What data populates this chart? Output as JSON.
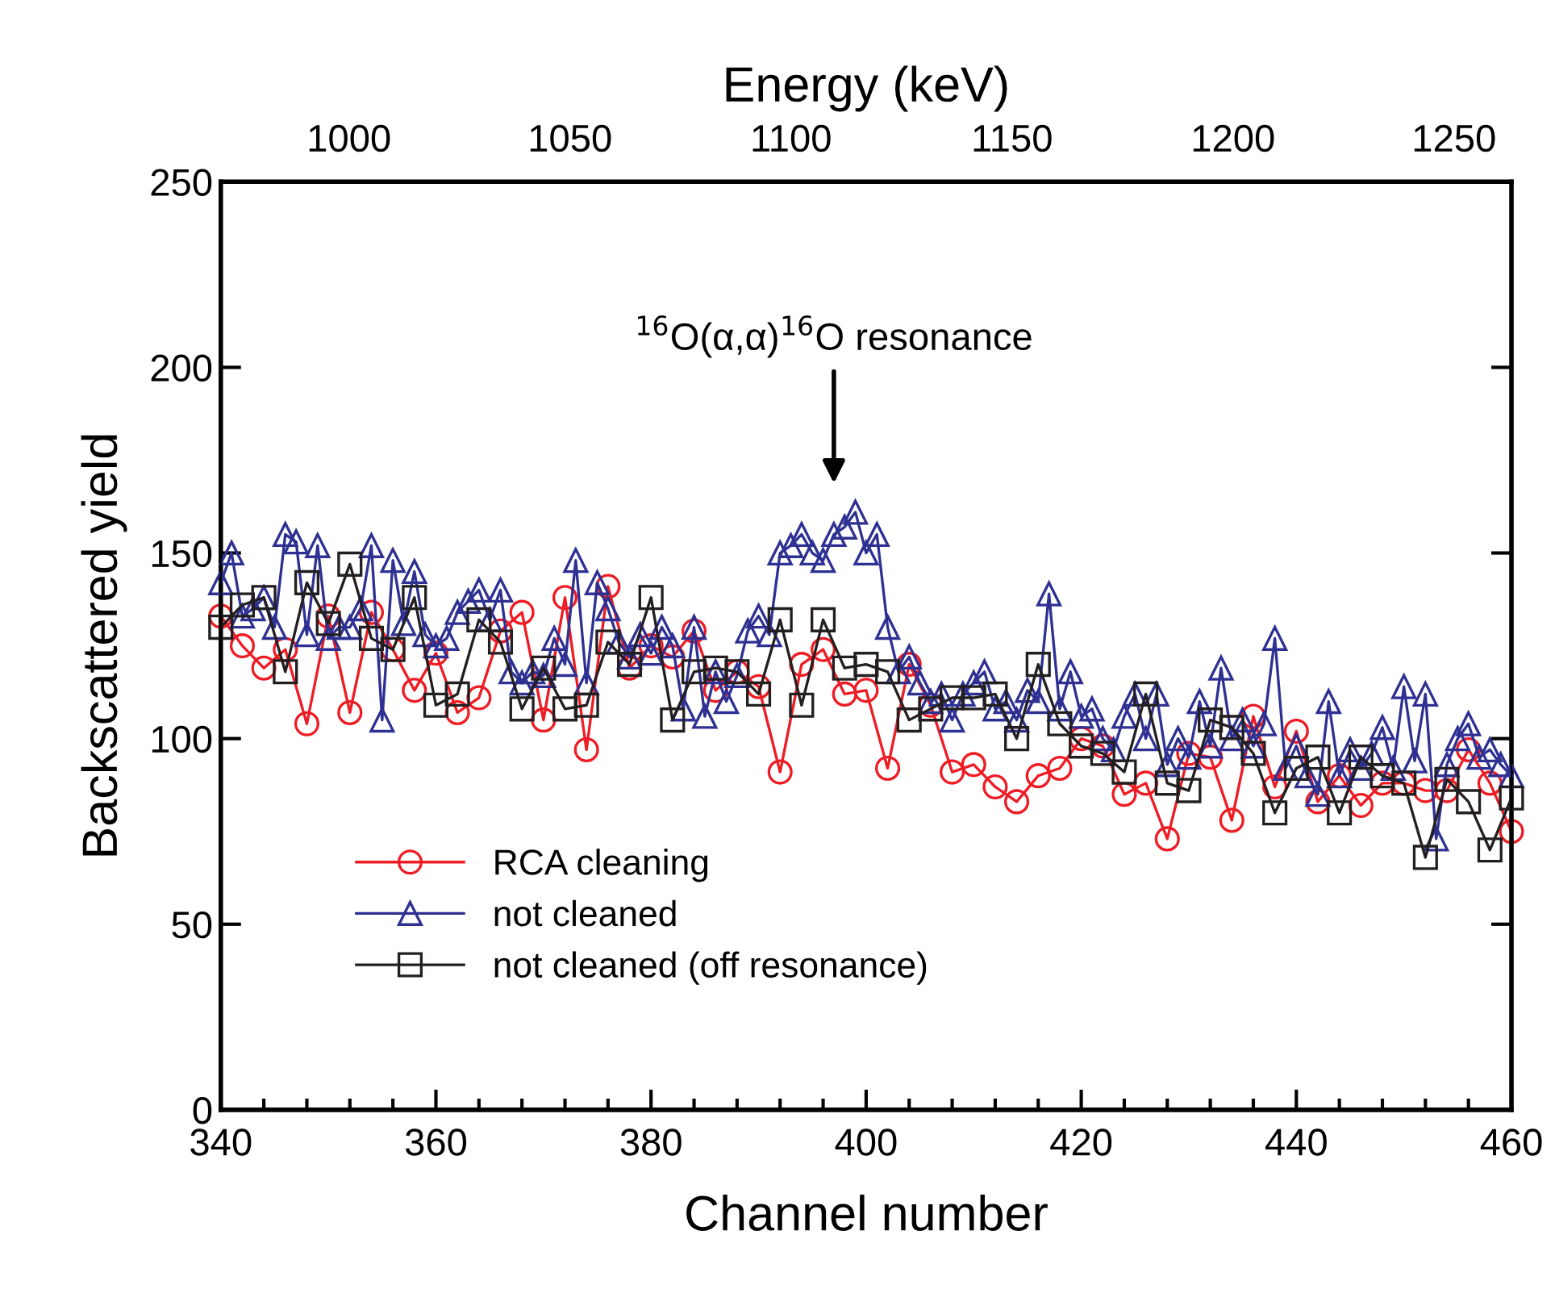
{
  "chart_data": {
    "type": "line",
    "xlabel": "Channel number",
    "ylabel": "Backscattered yield",
    "x2label": "Energy (keV)",
    "xlim": [
      340,
      460
    ],
    "xticks": [
      340,
      360,
      380,
      400,
      420,
      440,
      460
    ],
    "ylim": [
      0,
      250
    ],
    "yticks": [
      0,
      50,
      100,
      150,
      200,
      250
    ],
    "x2lim": [
      971,
      1263
    ],
    "x2ticks": [
      1000,
      1050,
      1100,
      1150,
      1200,
      1250
    ],
    "grid": false,
    "legend": "bottom left",
    "line_style": "solid",
    "annotations": [
      "$^{16}$O(α,α)$^{16}$O resonance"
    ],
    "series": [
      {
        "name": "RCA cleaning",
        "color": "#ee1c24",
        "marker": "circle",
        "x": [
          340,
          342,
          344,
          346,
          348,
          350,
          352,
          354,
          356,
          358,
          360,
          362,
          364,
          366,
          368,
          370,
          372,
          374,
          376,
          378,
          380,
          382,
          384,
          386,
          388,
          390,
          392,
          394,
          396,
          398,
          400,
          402,
          404,
          406,
          408,
          410,
          412,
          414,
          416,
          418,
          420,
          422,
          424,
          426,
          428,
          430,
          432,
          434,
          436,
          438,
          440,
          442,
          444,
          446,
          448,
          450,
          452,
          454,
          456,
          458,
          460
        ],
        "values": [
          133,
          125,
          119,
          124,
          104,
          133,
          107,
          134,
          124,
          113,
          123,
          107,
          111,
          129,
          134,
          105,
          138,
          97,
          141,
          119,
          125,
          122,
          129,
          113,
          118,
          114,
          91,
          120,
          124,
          112,
          113,
          92,
          120,
          109,
          91,
          93,
          87,
          83,
          90,
          92,
          100,
          98,
          85,
          88,
          73,
          96,
          95,
          78,
          106,
          87,
          102,
          83,
          90,
          82,
          88,
          88,
          86,
          86,
          97,
          88,
          75
        ]
      },
      {
        "name": "not cleaned",
        "color": "#2e3192",
        "marker": "triangle",
        "x": [
          340,
          341,
          342,
          343,
          344,
          345,
          346,
          347,
          348,
          349,
          350,
          351,
          352,
          353,
          354,
          355,
          356,
          357,
          358,
          359,
          360,
          361,
          362,
          363,
          364,
          365,
          366,
          367,
          368,
          369,
          370,
          371,
          372,
          373,
          374,
          375,
          376,
          377,
          378,
          379,
          380,
          381,
          382,
          383,
          384,
          385,
          386,
          387,
          388,
          389,
          390,
          391,
          392,
          393,
          394,
          395,
          396,
          397,
          398,
          399,
          400,
          401,
          402,
          403,
          404,
          405,
          406,
          407,
          408,
          409,
          410,
          411,
          412,
          413,
          414,
          415,
          416,
          417,
          418,
          419,
          420,
          421,
          422,
          423,
          424,
          425,
          426,
          427,
          428,
          429,
          430,
          431,
          432,
          433,
          434,
          435,
          436,
          437,
          438,
          439,
          440,
          441,
          442,
          443,
          444,
          445,
          446,
          447,
          448,
          449,
          450,
          451,
          452,
          453,
          454,
          455,
          456,
          457,
          458,
          459,
          460
        ],
        "values": [
          142,
          150,
          133,
          135,
          138,
          130,
          155,
          153,
          128,
          152,
          127,
          130,
          130,
          135,
          152,
          105,
          148,
          131,
          145,
          128,
          125,
          127,
          134,
          137,
          140,
          132,
          140,
          118,
          115,
          118,
          117,
          127,
          120,
          148,
          115,
          142,
          135,
          126,
          122,
          128,
          123,
          130,
          125,
          108,
          130,
          106,
          118,
          110,
          117,
          129,
          133,
          128,
          150,
          152,
          155,
          150,
          148,
          155,
          157,
          161,
          150,
          155,
          130,
          118,
          122,
          115,
          110,
          112,
          105,
          112,
          115,
          118,
          108,
          110,
          105,
          113,
          110,
          139,
          108,
          118,
          106,
          108,
          100,
          97,
          106,
          112,
          100,
          112,
          93,
          100,
          95,
          110,
          98,
          119,
          100,
          105,
          98,
          104,
          127,
          92,
          98,
          90,
          85,
          110,
          90,
          97,
          92,
          96,
          103,
          92,
          114,
          94,
          112,
          73,
          93,
          100,
          104,
          95,
          97,
          93,
          90
        ]
      },
      {
        "name": "not cleaned (off resonance)",
        "color": "#231f20",
        "marker": "square",
        "x": [
          340,
          342,
          344,
          346,
          348,
          350,
          352,
          354,
          356,
          358,
          360,
          362,
          364,
          366,
          368,
          370,
          372,
          374,
          376,
          378,
          380,
          382,
          384,
          386,
          388,
          390,
          392,
          394,
          396,
          398,
          400,
          402,
          404,
          406,
          408,
          410,
          412,
          414,
          416,
          418,
          420,
          422,
          424,
          426,
          428,
          430,
          432,
          434,
          436,
          438,
          440,
          442,
          444,
          446,
          448,
          450,
          452,
          454,
          456,
          458,
          460
        ],
        "values": [
          130,
          136,
          138,
          118,
          142,
          131,
          147,
          127,
          124,
          138,
          109,
          112,
          132,
          126,
          108,
          119,
          108,
          109,
          126,
          120,
          138,
          105,
          118,
          119,
          118,
          112,
          132,
          109,
          132,
          119,
          120,
          118,
          105,
          108,
          111,
          111,
          112,
          100,
          120,
          104,
          98,
          96,
          91,
          112,
          88,
          86,
          105,
          103,
          96,
          80,
          92,
          95,
          80,
          95,
          90,
          88,
          68,
          89,
          83,
          70,
          84
        ]
      }
    ]
  }
}
